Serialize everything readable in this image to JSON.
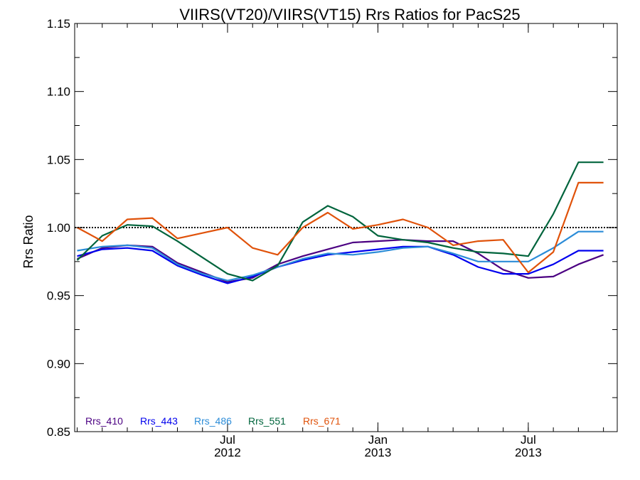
{
  "chart_data": {
    "type": "line",
    "title": "VIIRS(VT20)/VIIRS(VT15)  Rrs Ratios for PacS25",
    "xlabel": "",
    "ylabel": "Rrs Ratio",
    "ylim": [
      0.85,
      1.15
    ],
    "xlim": [
      "2012-01",
      "2013-10"
    ],
    "yticks": [
      "0.85",
      "0.90",
      "0.95",
      "1.00",
      "1.05",
      "1.10",
      "1.15"
    ],
    "xticks": [
      {
        "month": "Jul",
        "year": "2012",
        "date": "2012-07"
      },
      {
        "month": "Jan",
        "year": "2013",
        "date": "2013-01"
      },
      {
        "month": "Jul",
        "year": "2013",
        "date": "2013-07"
      }
    ],
    "reference_line": 1.0,
    "grid": false,
    "legend_position": "bottom-left",
    "x": [
      "2012-01",
      "2012-02",
      "2012-03",
      "2012-04",
      "2012-05",
      "2012-06",
      "2012-07",
      "2012-08",
      "2012-09",
      "2012-10",
      "2012-11",
      "2012-12",
      "2013-01",
      "2013-02",
      "2013-03",
      "2013-04",
      "2013-05",
      "2013-06",
      "2013-07",
      "2013-08",
      "2013-09",
      "2013-10"
    ],
    "series": [
      {
        "name": "Rrs_410",
        "color": "#4b0082",
        "values": [
          0.977,
          0.985,
          0.987,
          0.986,
          0.974,
          0.967,
          0.96,
          0.963,
          0.973,
          0.979,
          0.984,
          0.989,
          0.99,
          0.991,
          0.99,
          0.99,
          0.981,
          0.969,
          0.963,
          0.964,
          0.973,
          0.98
        ]
      },
      {
        "name": "Rrs_443",
        "color": "#0000ee",
        "values": [
          0.979,
          0.984,
          0.985,
          0.983,
          0.972,
          0.965,
          0.959,
          0.964,
          0.971,
          0.976,
          0.98,
          0.982,
          0.984,
          0.986,
          0.986,
          0.98,
          0.971,
          0.966,
          0.966,
          0.973,
          0.983,
          0.983
        ]
      },
      {
        "name": "Rrs_486",
        "color": "#2b8cd8",
        "values": [
          0.983,
          0.986,
          0.987,
          0.985,
          0.973,
          0.966,
          0.961,
          0.965,
          0.971,
          0.977,
          0.981,
          0.98,
          0.982,
          0.985,
          0.986,
          0.981,
          0.975,
          0.975,
          0.975,
          0.985,
          0.997,
          0.997
        ]
      },
      {
        "name": "Rrs_551",
        "color": "#00643c",
        "values": [
          0.976,
          0.994,
          1.002,
          1.001,
          0.99,
          0.978,
          0.966,
          0.961,
          0.972,
          1.004,
          1.016,
          1.008,
          0.994,
          0.991,
          0.989,
          0.985,
          0.982,
          0.981,
          0.979,
          1.01,
          1.048,
          1.048
        ]
      },
      {
        "name": "Rrs_671",
        "color": "#e0520a",
        "values": [
          1.0,
          0.99,
          1.006,
          1.007,
          0.992,
          0.996,
          1.0,
          0.985,
          0.98,
          1.0,
          1.011,
          0.999,
          1.002,
          1.006,
          1.0,
          0.987,
          0.99,
          0.991,
          0.967,
          0.982,
          1.033,
          1.033
        ]
      }
    ]
  }
}
